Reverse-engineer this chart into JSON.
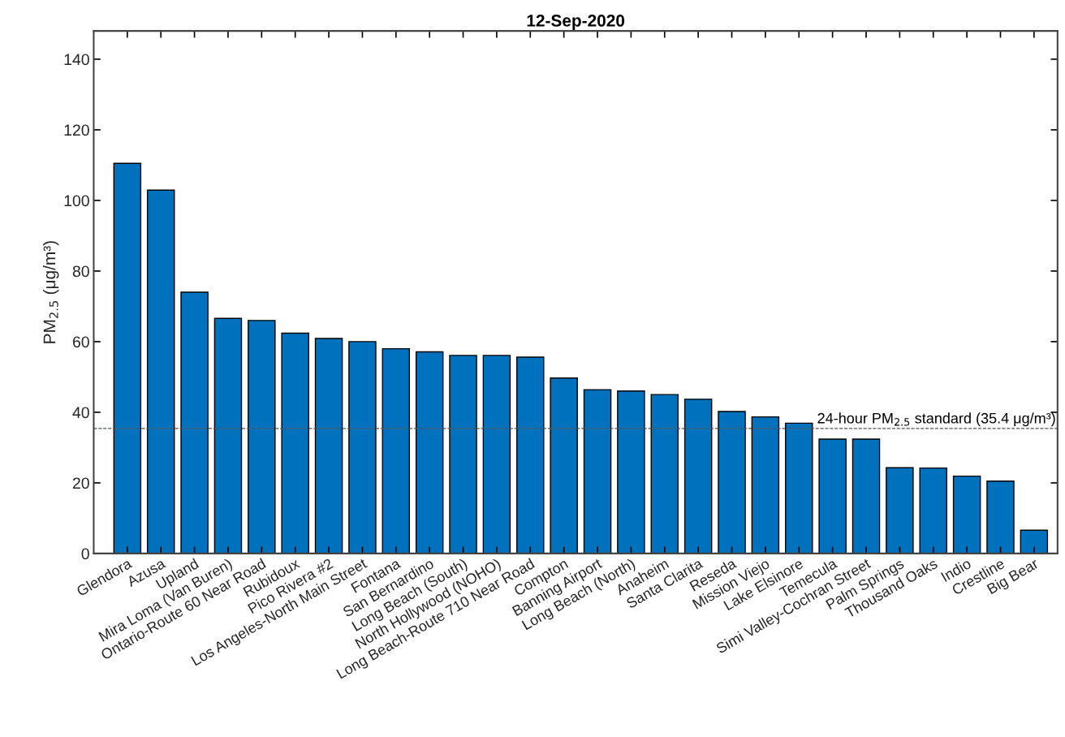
{
  "chart_data": {
    "type": "bar",
    "title": "12-Sep-2020",
    "ylabel": "PM$_{2.5}$ (μg/m³)",
    "categories": [
      "Glendora",
      "Azusa",
      "Upland",
      "Mira Loma (Van Buren)",
      "Ontario-Route 60 Near Road",
      "Rubidoux",
      "Pico Rivera #2",
      "Los Angeles-North Main Street",
      "Fontana",
      "San Bernardino",
      "Long Beach (South)",
      "North Hollywood (NOHO)",
      "Long Beach-Route 710 Near Road",
      "Compton",
      "Banning Airport",
      "Long Beach (North)",
      "Anaheim",
      "Santa Clarita",
      "Reseda",
      "Mission Viejo",
      "Lake Elsinore",
      "Temecula",
      "Simi Valley-Cochran Street",
      "Palm Springs",
      "Thousand Oaks",
      "Indio",
      "Crestline",
      "Big Bear"
    ],
    "values": [
      110.5,
      102.9,
      74.0,
      66.6,
      66.0,
      62.4,
      60.9,
      60.0,
      58.0,
      57.1,
      56.1,
      56.1,
      55.6,
      49.7,
      46.4,
      46.0,
      45.0,
      43.7,
      40.2,
      38.7,
      36.9,
      32.4,
      32.4,
      24.3,
      24.2,
      21.9,
      20.5,
      6.6
    ],
    "color": "#0072bd",
    "ylim": [
      0,
      148
    ],
    "yticks": [
      0,
      20,
      40,
      60,
      80,
      100,
      120,
      140
    ],
    "ref_lines": [
      {
        "axis": "y",
        "value": 35.4,
        "label": "24-hour PM$_{2.5}$ standard (35.4 μg/m³)",
        "color": "#555555",
        "line_style": "dashed"
      }
    ],
    "grid": false,
    "legend": false
  }
}
